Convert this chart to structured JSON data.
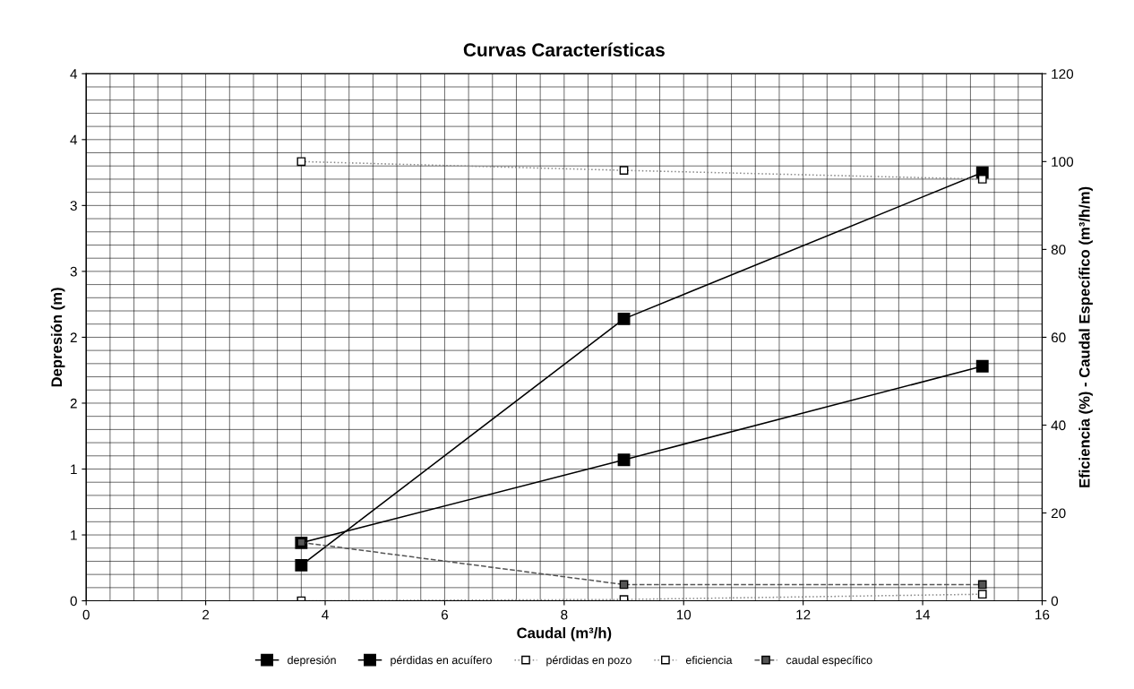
{
  "chart_data": {
    "type": "line",
    "title": "Curvas Características",
    "xlabel": "Caudal (m³/h)",
    "ylabel": "Depresión (m)",
    "y2label": "Eficiencia (%) - Caudal Específico (m³/h/m)",
    "x": [
      3.6,
      9,
      15
    ],
    "series": [
      {
        "name": "depresión",
        "color": "#000000",
        "values": [
          0.27,
          2.14,
          3.25
        ],
        "line_style": "solid"
      },
      {
        "name": "pérdidas en acuífero",
        "color": "#000000",
        "values": [
          0.44,
          1.07,
          1.78
        ],
        "line_style": "solid"
      },
      {
        "name": "pérdidas en pozo",
        "color": "#888888",
        "values": [
          0,
          0.01,
          0.05
        ],
        "line_style": "dotted"
      },
      {
        "name": "eficiencia",
        "color": "#888888",
        "values": [
          100,
          98,
          96
        ],
        "line_style": "dotted",
        "axis": "y2"
      },
      {
        "name": "caudal específico",
        "color": "#555555",
        "values": [
          13.3,
          3.7,
          3.7
        ],
        "line_style": "dashed",
        "axis": "y2"
      }
    ],
    "xlim": [
      0,
      16
    ],
    "xticks": [
      0,
      2,
      4,
      6,
      8,
      10,
      12,
      14,
      16
    ],
    "ylim": [
      0,
      4
    ],
    "yticks": [
      0,
      {
        "value": 0.5,
        "label": "1"
      },
      1,
      {
        "value": 1.5,
        "label": "2"
      },
      2,
      {
        "value": 2.5,
        "label": "3"
      },
      3,
      {
        "value": 3.5,
        "label": "4"
      },
      4
    ],
    "y2lim": [
      0,
      120
    ],
    "y2ticks": [
      0,
      20,
      40,
      60,
      80,
      100,
      120
    ],
    "grid": true,
    "legend": "bottom",
    "marker": "square"
  }
}
